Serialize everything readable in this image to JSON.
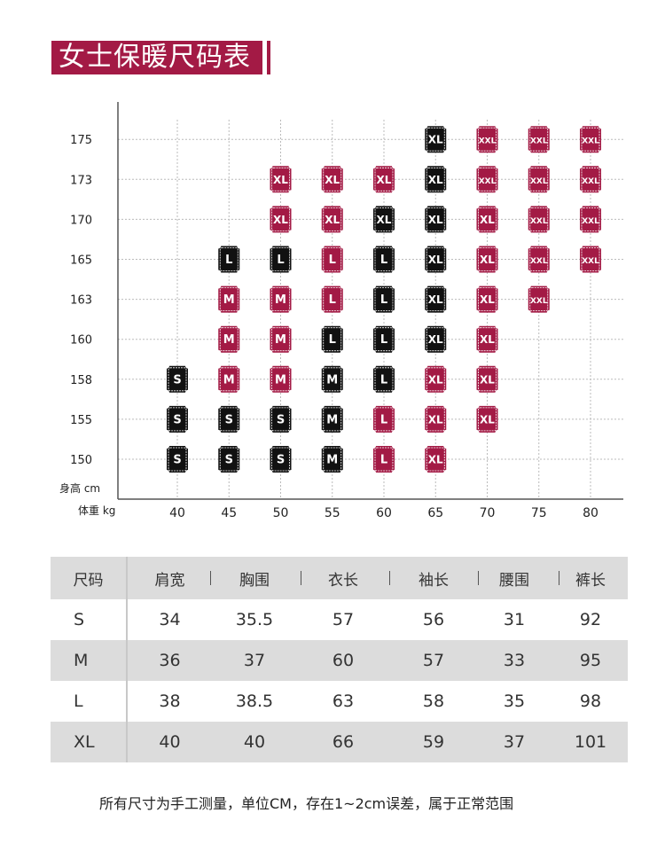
{
  "page_title": "女士保暖尺码表",
  "colors": {
    "accent": "#a31a45",
    "black": "#111111",
    "grid": "#bbbbbb",
    "table_stripe": "#dcdcdc"
  },
  "chart_data": {
    "type": "scatter",
    "ylabel": "身高 cm",
    "xlabel": "体重 kg",
    "x_ticks": [
      40,
      45,
      50,
      55,
      60,
      65,
      70,
      75,
      80
    ],
    "y_ticks": [
      150,
      155,
      158,
      160,
      163,
      165,
      170,
      173,
      175
    ],
    "grid": true,
    "points": [
      {
        "x": 40,
        "y": 158,
        "label": "S",
        "color": "black"
      },
      {
        "x": 40,
        "y": 155,
        "label": "S",
        "color": "black"
      },
      {
        "x": 40,
        "y": 150,
        "label": "S",
        "color": "black"
      },
      {
        "x": 45,
        "y": 165,
        "label": "L",
        "color": "black"
      },
      {
        "x": 45,
        "y": 163,
        "label": "M",
        "color": "red"
      },
      {
        "x": 45,
        "y": 160,
        "label": "M",
        "color": "red"
      },
      {
        "x": 45,
        "y": 158,
        "label": "M",
        "color": "red"
      },
      {
        "x": 45,
        "y": 155,
        "label": "S",
        "color": "black"
      },
      {
        "x": 45,
        "y": 150,
        "label": "S",
        "color": "black"
      },
      {
        "x": 50,
        "y": 173,
        "label": "XL",
        "color": "red"
      },
      {
        "x": 50,
        "y": 170,
        "label": "XL",
        "color": "red"
      },
      {
        "x": 50,
        "y": 165,
        "label": "L",
        "color": "black"
      },
      {
        "x": 50,
        "y": 163,
        "label": "M",
        "color": "red"
      },
      {
        "x": 50,
        "y": 160,
        "label": "M",
        "color": "red"
      },
      {
        "x": 50,
        "y": 158,
        "label": "M",
        "color": "red"
      },
      {
        "x": 50,
        "y": 155,
        "label": "S",
        "color": "black"
      },
      {
        "x": 50,
        "y": 150,
        "label": "S",
        "color": "black"
      },
      {
        "x": 55,
        "y": 173,
        "label": "XL",
        "color": "red"
      },
      {
        "x": 55,
        "y": 170,
        "label": "XL",
        "color": "red"
      },
      {
        "x": 55,
        "y": 165,
        "label": "L",
        "color": "red"
      },
      {
        "x": 55,
        "y": 163,
        "label": "L",
        "color": "red"
      },
      {
        "x": 55,
        "y": 160,
        "label": "L",
        "color": "black"
      },
      {
        "x": 55,
        "y": 158,
        "label": "M",
        "color": "black"
      },
      {
        "x": 55,
        "y": 155,
        "label": "M",
        "color": "black"
      },
      {
        "x": 55,
        "y": 150,
        "label": "M",
        "color": "black"
      },
      {
        "x": 60,
        "y": 173,
        "label": "XL",
        "color": "red"
      },
      {
        "x": 60,
        "y": 170,
        "label": "XL",
        "color": "black"
      },
      {
        "x": 60,
        "y": 165,
        "label": "L",
        "color": "black"
      },
      {
        "x": 60,
        "y": 163,
        "label": "L",
        "color": "black"
      },
      {
        "x": 60,
        "y": 160,
        "label": "L",
        "color": "black"
      },
      {
        "x": 60,
        "y": 158,
        "label": "L",
        "color": "black"
      },
      {
        "x": 60,
        "y": 155,
        "label": "L",
        "color": "red"
      },
      {
        "x": 60,
        "y": 150,
        "label": "L",
        "color": "red"
      },
      {
        "x": 65,
        "y": 175,
        "label": "XL",
        "color": "black"
      },
      {
        "x": 65,
        "y": 173,
        "label": "XL",
        "color": "black"
      },
      {
        "x": 65,
        "y": 170,
        "label": "XL",
        "color": "black"
      },
      {
        "x": 65,
        "y": 165,
        "label": "XL",
        "color": "black"
      },
      {
        "x": 65,
        "y": 163,
        "label": "XL",
        "color": "black"
      },
      {
        "x": 65,
        "y": 160,
        "label": "XL",
        "color": "black"
      },
      {
        "x": 65,
        "y": 158,
        "label": "XL",
        "color": "red"
      },
      {
        "x": 65,
        "y": 155,
        "label": "XL",
        "color": "red"
      },
      {
        "x": 65,
        "y": 150,
        "label": "XL",
        "color": "red"
      },
      {
        "x": 70,
        "y": 175,
        "label": "XXL",
        "color": "red"
      },
      {
        "x": 70,
        "y": 173,
        "label": "XXL",
        "color": "red"
      },
      {
        "x": 70,
        "y": 170,
        "label": "XL",
        "color": "red"
      },
      {
        "x": 70,
        "y": 165,
        "label": "XL",
        "color": "red"
      },
      {
        "x": 70,
        "y": 163,
        "label": "XL",
        "color": "red"
      },
      {
        "x": 70,
        "y": 160,
        "label": "XL",
        "color": "red"
      },
      {
        "x": 70,
        "y": 158,
        "label": "XL",
        "color": "red"
      },
      {
        "x": 70,
        "y": 155,
        "label": "XL",
        "color": "red"
      },
      {
        "x": 75,
        "y": 175,
        "label": "XXL",
        "color": "red"
      },
      {
        "x": 75,
        "y": 173,
        "label": "XXL",
        "color": "red"
      },
      {
        "x": 75,
        "y": 170,
        "label": "XXL",
        "color": "red"
      },
      {
        "x": 75,
        "y": 165,
        "label": "XXL",
        "color": "red"
      },
      {
        "x": 75,
        "y": 163,
        "label": "XXL",
        "color": "red"
      },
      {
        "x": 80,
        "y": 175,
        "label": "XXL",
        "color": "red"
      },
      {
        "x": 80,
        "y": 173,
        "label": "XXL",
        "color": "red"
      },
      {
        "x": 80,
        "y": 170,
        "label": "XXL",
        "color": "red"
      },
      {
        "x": 80,
        "y": 165,
        "label": "XXL",
        "color": "red"
      }
    ]
  },
  "size_table": {
    "headers": [
      "尺码",
      "肩宽",
      "胸围",
      "衣长",
      "袖长",
      "腰围",
      "裤长"
    ],
    "rows": [
      [
        "S",
        "34",
        "35.5",
        "57",
        "56",
        "31",
        "92"
      ],
      [
        "M",
        "36",
        "37",
        "60",
        "57",
        "33",
        "95"
      ],
      [
        "L",
        "38",
        "38.5",
        "63",
        "58",
        "35",
        "98"
      ],
      [
        "XL",
        "40",
        "40",
        "66",
        "59",
        "37",
        "101"
      ]
    ]
  },
  "footnote": "所有尺寸为手工测量，单位CM，存在1~2cm误差，属于正常范围"
}
